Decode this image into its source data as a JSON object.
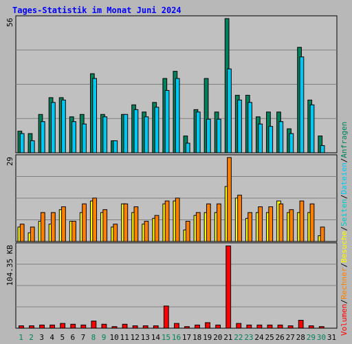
{
  "colors": {
    "background": "#b8b8b8",
    "panel": "#c0c0c0",
    "grid": "#7f7f7f",
    "title": "#0000ff",
    "weekday": "#000000",
    "weekend": "#00805c",
    "hits": "#00805c",
    "files": "#00c8f0",
    "pages": "#00c8c8",
    "visits": "#ffff00",
    "sites": "#ff8000",
    "volume": "#ff0000",
    "slash": "#000000"
  },
  "chart_data": {
    "type": "bar",
    "title": "Tages-Statistik im Monat Juni 2024",
    "categories": [
      "1",
      "2",
      "3",
      "4",
      "5",
      "6",
      "7",
      "8",
      "9",
      "10",
      "11",
      "12",
      "13",
      "14",
      "15",
      "16",
      "17",
      "18",
      "19",
      "20",
      "21",
      "22",
      "23",
      "24",
      "25",
      "26",
      "27",
      "28",
      "29",
      "30",
      "31"
    ],
    "weekend_days": [
      "1",
      "2",
      "8",
      "9",
      "15",
      "16",
      "22",
      "23",
      "29",
      "30"
    ],
    "panels": [
      {
        "ylabel": "56",
        "ylim": [
          0,
          56
        ],
        "series": [
          {
            "key": "hits",
            "values": [
              9,
              8,
              16,
              23,
              23,
              15,
              16,
              33,
              16,
              5,
              16,
              20,
              17,
              21,
              31,
              34,
              7,
              18,
              31,
              17,
              56,
              24,
              24,
              15,
              17,
              17,
              10,
              44,
              22,
              7,
              0
            ]
          },
          {
            "key": "files",
            "values": [
              8,
              5,
              13,
              21,
              22,
              13,
              12,
              31,
              15,
              5,
              16,
              18,
              15,
              19,
              26,
              31,
              4,
              17,
              14,
              14,
              35,
              22,
              21,
              12,
              11,
              13,
              8,
              40,
              20,
              3,
              0
            ]
          }
        ]
      },
      {
        "ylabel": "29",
        "ylim": [
          0,
          29
        ],
        "series": [
          {
            "key": "visits",
            "values": [
              5,
              3,
              7,
              6,
              11,
              7,
              10,
              14,
              10,
              5,
              13,
              10,
              6,
              8,
              13,
              14,
              4,
              9,
              10,
              10,
              19,
              15,
              8,
              10,
              10,
              14,
              10,
              10,
              10,
              2,
              0
            ]
          },
          {
            "key": "sites",
            "values": [
              6,
              5,
              10,
              10,
              12,
              7,
              13,
              15,
              11,
              6,
              13,
              12,
              7,
              9,
              14,
              15,
              7,
              10,
              13,
              13,
              29,
              16,
              10,
              12,
              12,
              13,
              11,
              14,
              13,
              5,
              0
            ]
          }
        ]
      },
      {
        "ylabel": "104.35 KB",
        "ylim": [
          0,
          104.35
        ],
        "series": [
          {
            "key": "volume",
            "values": [
              3,
              3,
              4,
              4,
              6,
              5,
              4,
              9,
              5,
              2,
              5,
              3,
              3,
              3,
              28,
              6,
              2,
              4,
              7,
              4,
              104,
              6,
              4,
              4,
              4,
              4,
              3,
              10,
              3,
              2,
              0
            ]
          }
        ]
      }
    ],
    "legend": [
      {
        "key": "volume",
        "label": "Volumen"
      },
      {
        "key": "sites",
        "label": "Rechner"
      },
      {
        "key": "visits",
        "label": "Besuche"
      },
      {
        "key": "pages",
        "label": "Seiten"
      },
      {
        "key": "files",
        "label": "Dateien"
      },
      {
        "key": "hits",
        "label": "Anfragen"
      }
    ],
    "legend_separator": "/",
    "legend_position": "right-vertical"
  }
}
